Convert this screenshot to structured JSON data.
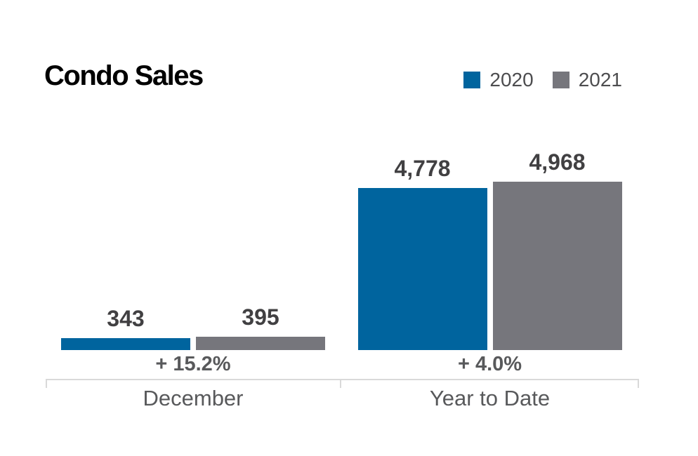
{
  "page": {
    "background": "#ffffff"
  },
  "header": {
    "title": "Condo Sales"
  },
  "legend": {
    "items": [
      {
        "label": "2020",
        "color": "#00649E"
      },
      {
        "label": "2021",
        "color": "#76767C"
      }
    ]
  },
  "chart_data": {
    "type": "bar",
    "title": "Condo Sales",
    "categories": [
      "December",
      "Year to Date"
    ],
    "series": [
      {
        "name": "2020",
        "color": "#00649E",
        "values": [
          343,
          4778
        ],
        "value_labels": [
          "343",
          "4,778"
        ]
      },
      {
        "name": "2021",
        "color": "#76767C",
        "values": [
          395,
          4968
        ],
        "value_labels": [
          "395",
          "4,968"
        ]
      }
    ],
    "change_labels": [
      "+ 15.2%",
      "+ 4.0%"
    ],
    "xlabel": "",
    "ylabel": "",
    "ylim": [
      0,
      4968
    ],
    "grid": false,
    "legend_position": "top-right",
    "colors": {
      "value_label": "#414042",
      "change_label": "#58595B",
      "category_label": "#58595B",
      "axis": "#D9D9D9"
    }
  }
}
